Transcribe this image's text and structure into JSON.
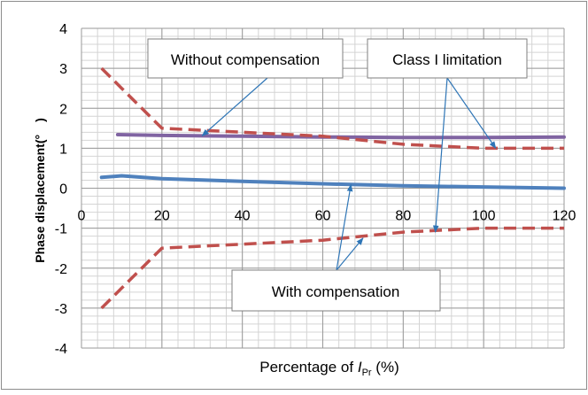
{
  "chart_data": {
    "type": "line",
    "title": "",
    "xlabel": {
      "prefix": "Percentage of ",
      "symbol": "I",
      "subscript": "Pr",
      "suffix": " (%)"
    },
    "ylabel": "Phase displacement(°　)",
    "xlim": [
      0,
      120
    ],
    "ylim": [
      -4,
      4
    ],
    "x_ticks": [
      0,
      20,
      40,
      60,
      80,
      100,
      120
    ],
    "y_ticks": [
      -4,
      -3,
      -2,
      -1,
      0,
      1,
      2,
      3,
      4
    ],
    "grid": true,
    "series": [
      {
        "style": "solid",
        "color": "#4f81bd",
        "x": [
          5,
          10,
          20,
          40,
          60,
          80,
          100,
          120
        ],
        "y": [
          0.27,
          0.31,
          0.24,
          0.17,
          0.11,
          0.06,
          0.03,
          0.0
        ]
      },
      {
        "style": "solid",
        "color": "#8064a2",
        "x": [
          9,
          20,
          40,
          60,
          80,
          100,
          120
        ],
        "y": [
          1.34,
          1.32,
          1.3,
          1.28,
          1.27,
          1.27,
          1.28
        ]
      },
      {
        "style": "dashed",
        "color": "#c0504d",
        "x": [
          5,
          10,
          20,
          40,
          60,
          80,
          100,
          120
        ],
        "y": [
          3.0,
          2.5,
          1.5,
          1.4,
          1.3,
          1.1,
          1.0,
          1.0
        ]
      },
      {
        "style": "dashed",
        "color": "#c0504d",
        "x": [
          5,
          10,
          20,
          40,
          60,
          80,
          100,
          120
        ],
        "y": [
          -3.0,
          -2.5,
          -1.5,
          -1.4,
          -1.3,
          -1.1,
          -1.0,
          -1.0
        ]
      }
    ],
    "annotations": [
      {
        "text": "Without  compensation",
        "arrows_to": [
          [
            30,
            1.31
          ]
        ]
      },
      {
        "text": "Class I limitation",
        "arrows_to": [
          [
            103,
            1.0
          ],
          [
            88,
            -1.1
          ]
        ]
      },
      {
        "text": "With compensation",
        "arrows_to": [
          [
            67,
            0.09
          ],
          [
            70,
            -1.25
          ]
        ]
      }
    ]
  }
}
